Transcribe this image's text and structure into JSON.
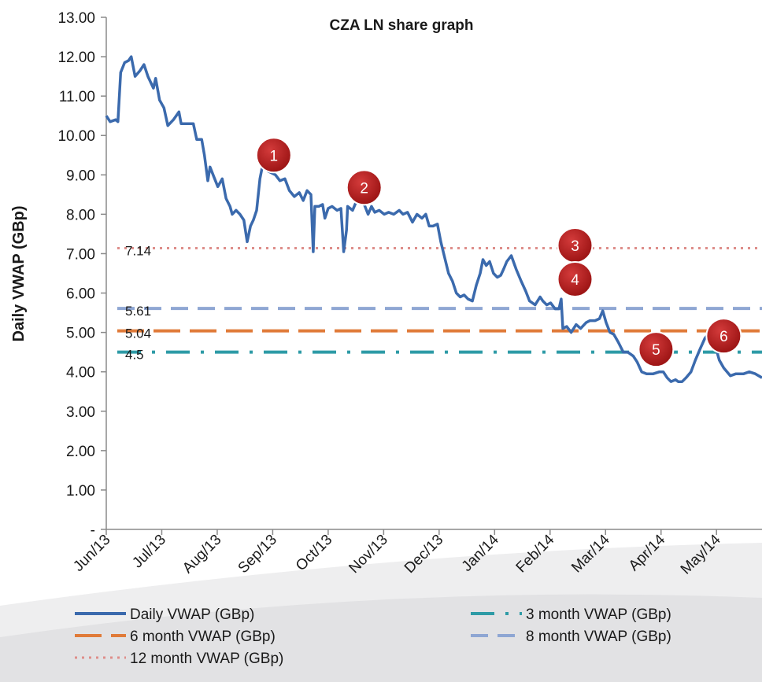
{
  "chart_data": {
    "type": "line",
    "title": "CZA LN share graph",
    "y_label": "Daily VWAP (GBp)",
    "xlim": [
      0,
      11.82
    ],
    "xticks": [
      {
        "value": 0,
        "label": "Jun/13"
      },
      {
        "value": 1,
        "label": "Jul/13"
      },
      {
        "value": 2,
        "label": "Aug/13"
      },
      {
        "value": 3,
        "label": "Sep/13"
      },
      {
        "value": 4,
        "label": "Oct/13"
      },
      {
        "value": 5,
        "label": "Nov/13"
      },
      {
        "value": 6,
        "label": "Dec/13"
      },
      {
        "value": 7,
        "label": "Jan/14"
      },
      {
        "value": 8,
        "label": "Feb/14"
      },
      {
        "value": 9,
        "label": "Mar/14"
      },
      {
        "value": 10,
        "label": "Apr/14"
      },
      {
        "value": 11,
        "label": "May/14"
      }
    ],
    "ylim": [
      0,
      13
    ],
    "yticks": [
      {
        "value": 0,
        "label": "-"
      },
      {
        "value": 1,
        "label": "1.00"
      },
      {
        "value": 2,
        "label": "2.00"
      },
      {
        "value": 3,
        "label": "3.00"
      },
      {
        "value": 4,
        "label": "4.00"
      },
      {
        "value": 5,
        "label": "5.00"
      },
      {
        "value": 6,
        "label": "6.00"
      },
      {
        "value": 7,
        "label": "7.00"
      },
      {
        "value": 8,
        "label": "8.00"
      },
      {
        "value": 9,
        "label": "9.00"
      },
      {
        "value": 10,
        "label": "10.00"
      },
      {
        "value": 11,
        "label": "11.00"
      },
      {
        "value": 12,
        "label": "12.00"
      },
      {
        "value": 13,
        "label": "13.00"
      }
    ],
    "series": [
      {
        "name": "Daily VWAP (GBp)",
        "color": "#3b6aad",
        "x": [
          0,
          0.07,
          0.17,
          0.21,
          0.26,
          0.33,
          0.4,
          0.45,
          0.52,
          0.61,
          0.68,
          0.75,
          0.85,
          0.89,
          0.96,
          1.04,
          1.11,
          1.21,
          1.31,
          1.35,
          1.49,
          1.57,
          1.63,
          1.72,
          1.77,
          1.83,
          1.87,
          1.94,
          2.01,
          2.09,
          2.16,
          2.23,
          2.27,
          2.34,
          2.41,
          2.48,
          2.54,
          2.6,
          2.65,
          2.71,
          2.77,
          2.84,
          2.91,
          2.98,
          3.05,
          3.13,
          3.22,
          3.3,
          3.39,
          3.48,
          3.55,
          3.62,
          3.69,
          3.73,
          3.76,
          3.83,
          3.9,
          3.94,
          4.0,
          4.07,
          4.16,
          4.23,
          4.28,
          4.33,
          4.35,
          4.44,
          4.5,
          4.58,
          4.65,
          4.72,
          4.78,
          4.84,
          4.92,
          5.01,
          5.09,
          5.18,
          5.28,
          5.35,
          5.43,
          5.52,
          5.6,
          5.69,
          5.76,
          5.82,
          5.89,
          5.97,
          6.03,
          6.1,
          6.17,
          6.24,
          6.31,
          6.38,
          6.45,
          6.52,
          6.6,
          6.67,
          6.74,
          6.79,
          6.85,
          6.91,
          6.98,
          7.05,
          7.11,
          7.16,
          7.22,
          7.3,
          7.39,
          7.48,
          7.56,
          7.63,
          7.73,
          7.82,
          7.87,
          7.94,
          8.01,
          8.09,
          8.16,
          8.2,
          8.23,
          8.3,
          8.38,
          8.47,
          8.55,
          8.65,
          8.72,
          8.81,
          8.89,
          8.95,
          9.01,
          9.08,
          9.15,
          9.23,
          9.32,
          9.4,
          9.5,
          9.57,
          9.65,
          9.74,
          9.86,
          9.97,
          10.04,
          10.11,
          10.18,
          10.26,
          10.31,
          10.38,
          10.45,
          10.54,
          10.62,
          10.71,
          10.79,
          10.85,
          10.92,
          10.99,
          11.05,
          11.13,
          11.25,
          11.35,
          11.49,
          11.59,
          11.7,
          11.82
        ],
        "values": [
          10.5,
          10.35,
          10.4,
          10.35,
          11.6,
          11.85,
          11.9,
          12.0,
          11.5,
          11.65,
          11.8,
          11.5,
          11.2,
          11.45,
          10.9,
          10.7,
          10.25,
          10.4,
          10.6,
          10.3,
          10.3,
          10.3,
          9.9,
          9.9,
          9.5,
          8.85,
          9.2,
          8.95,
          8.7,
          8.9,
          8.4,
          8.2,
          8.0,
          8.1,
          8.0,
          7.85,
          7.3,
          7.7,
          7.85,
          8.1,
          8.9,
          9.4,
          9.1,
          9.05,
          9.0,
          8.85,
          8.9,
          8.6,
          8.45,
          8.55,
          8.35,
          8.6,
          8.5,
          7.05,
          8.2,
          8.2,
          8.25,
          7.9,
          8.15,
          8.2,
          8.1,
          8.15,
          7.05,
          7.6,
          8.2,
          8.1,
          8.3,
          8.3,
          8.25,
          8.0,
          8.2,
          8.05,
          8.1,
          8.0,
          8.05,
          8.0,
          8.1,
          8.0,
          8.05,
          7.8,
          8.0,
          7.9,
          8.0,
          7.7,
          7.7,
          7.75,
          7.3,
          6.9,
          6.5,
          6.3,
          6.0,
          5.9,
          5.95,
          5.85,
          5.8,
          6.2,
          6.5,
          6.85,
          6.7,
          6.8,
          6.5,
          6.4,
          6.45,
          6.6,
          6.8,
          6.95,
          6.6,
          6.3,
          6.05,
          5.8,
          5.7,
          5.9,
          5.8,
          5.7,
          5.75,
          5.6,
          5.6,
          5.85,
          5.1,
          5.15,
          5.0,
          5.2,
          5.1,
          5.25,
          5.3,
          5.3,
          5.35,
          5.55,
          5.25,
          5.0,
          4.95,
          4.75,
          4.5,
          4.5,
          4.4,
          4.25,
          4.0,
          3.95,
          3.95,
          4.0,
          4.0,
          3.85,
          3.75,
          3.8,
          3.75,
          3.75,
          3.85,
          4.0,
          4.3,
          4.6,
          4.85,
          4.95,
          5.0,
          4.6,
          4.3,
          4.1,
          3.9,
          3.95,
          3.95,
          4.0,
          3.95,
          3.85
        ]
      }
    ],
    "reference_lines": [
      {
        "name": "3 month VWAP (GBp)",
        "value": 4.5,
        "color": "#2e9ba6",
        "style": "dash-dot"
      },
      {
        "name": "6 month VWAP (GBp)",
        "value": 5.04,
        "color": "#e07b39",
        "style": "long-dash"
      },
      {
        "name": "8 month VWAP (GBp)",
        "value": 5.61,
        "color": "#8ea6d3",
        "style": "dash"
      },
      {
        "name": "12 month VWAP (GBp)",
        "value": 7.14,
        "color": "#de8e8a",
        "style": "dot"
      }
    ],
    "annotations": [
      {
        "label": "1",
        "x": 3.02,
        "y": 9.5
      },
      {
        "label": "2",
        "x": 4.65,
        "y": 8.68
      },
      {
        "label": "3",
        "x": 8.45,
        "y": 7.21
      },
      {
        "label": "4",
        "x": 8.45,
        "y": 6.35
      },
      {
        "label": "5",
        "x": 9.91,
        "y": 4.57
      },
      {
        "label": "6",
        "x": 11.13,
        "y": 4.91
      }
    ]
  }
}
